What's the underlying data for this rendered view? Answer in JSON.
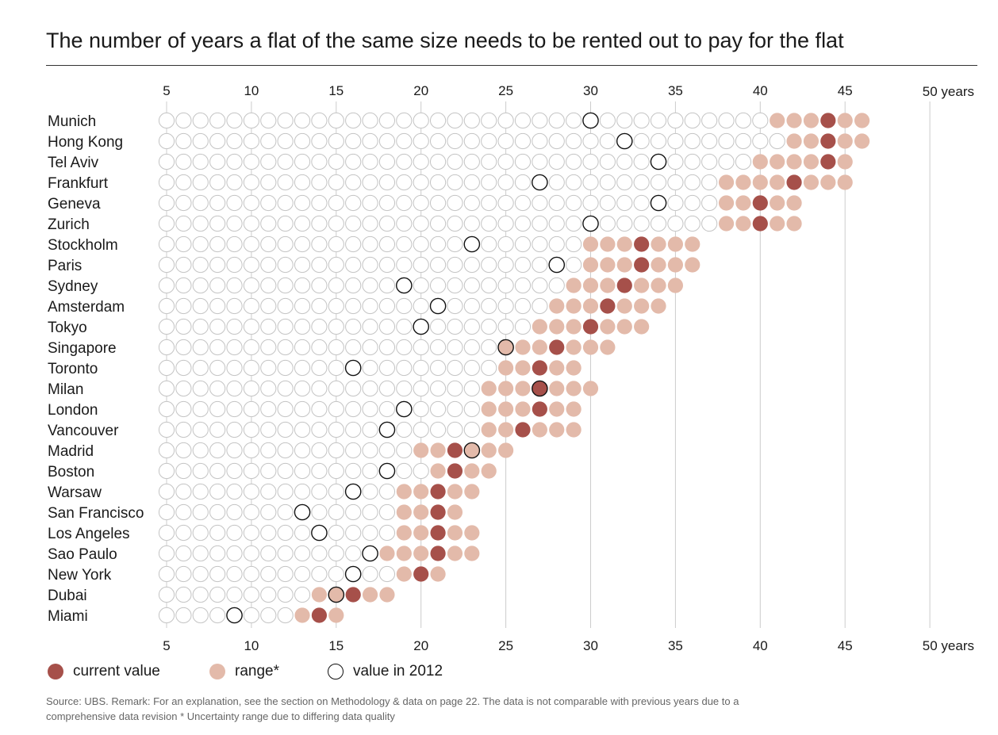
{
  "chart_data": {
    "type": "scatter",
    "title": "The number of years a flat of the same size needs to be rented out to pay for the flat",
    "x_ticks": [
      5,
      10,
      15,
      20,
      25,
      30,
      35,
      40,
      45
    ],
    "x_end_label": "50 years",
    "xlim": [
      5,
      50
    ],
    "grid": true,
    "colors": {
      "current": "#A6504A",
      "range": "#E3BAAA",
      "outline": "#c4c4c4",
      "marker_2012": "#111111",
      "gridline": "#cccccc"
    },
    "cities": [
      {
        "name": "Munich",
        "range": [
          41,
          46
        ],
        "current": 44,
        "value_2012": 30
      },
      {
        "name": "Hong Kong",
        "range": [
          42,
          46
        ],
        "current": 44,
        "value_2012": 32
      },
      {
        "name": "Tel Aviv",
        "range": [
          40,
          45
        ],
        "current": 44,
        "value_2012": 34
      },
      {
        "name": "Frankfurt",
        "range": [
          38,
          45
        ],
        "current": 42,
        "value_2012": 27
      },
      {
        "name": "Geneva",
        "range": [
          38,
          42
        ],
        "current": 40,
        "value_2012": 34
      },
      {
        "name": "Zurich",
        "range": [
          38,
          42
        ],
        "current": 40,
        "value_2012": 30
      },
      {
        "name": "Stockholm",
        "range": [
          30,
          36
        ],
        "current": 33,
        "value_2012": 23
      },
      {
        "name": "Paris",
        "range": [
          30,
          36
        ],
        "current": 33,
        "value_2012": 28
      },
      {
        "name": "Sydney",
        "range": [
          29,
          35
        ],
        "current": 32,
        "value_2012": 19
      },
      {
        "name": "Amsterdam",
        "range": [
          28,
          34
        ],
        "current": 31,
        "value_2012": 21
      },
      {
        "name": "Tokyo",
        "range": [
          27,
          33
        ],
        "current": 30,
        "value_2012": 20
      },
      {
        "name": "Singapore",
        "range": [
          25,
          31
        ],
        "current": 28,
        "value_2012": 25
      },
      {
        "name": "Toronto",
        "range": [
          25,
          29
        ],
        "current": 27,
        "value_2012": 16
      },
      {
        "name": "Milan",
        "range": [
          24,
          30
        ],
        "current": 27,
        "value_2012": 27
      },
      {
        "name": "London",
        "range": [
          24,
          29
        ],
        "current": 27,
        "value_2012": 19
      },
      {
        "name": "Vancouver",
        "range": [
          24,
          29
        ],
        "current": 26,
        "value_2012": 18
      },
      {
        "name": "Madrid",
        "range": [
          20,
          25
        ],
        "current": 22,
        "value_2012": 23
      },
      {
        "name": "Boston",
        "range": [
          21,
          24
        ],
        "current": 22,
        "value_2012": 18
      },
      {
        "name": "Warsaw",
        "range": [
          19,
          23
        ],
        "current": 21,
        "value_2012": 16
      },
      {
        "name": "San Francisco",
        "range": [
          19,
          22
        ],
        "current": 21,
        "value_2012": 13
      },
      {
        "name": "Los Angeles",
        "range": [
          19,
          23
        ],
        "current": 21,
        "value_2012": 14
      },
      {
        "name": "Sao Paulo",
        "range": [
          18,
          23
        ],
        "current": 21,
        "value_2012": 17
      },
      {
        "name": "New York",
        "range": [
          19,
          21
        ],
        "current": 20,
        "value_2012": 16
      },
      {
        "name": "Dubai",
        "range": [
          14,
          18
        ],
        "current": 16,
        "value_2012": 15
      },
      {
        "name": "Miami",
        "range": [
          13,
          15
        ],
        "current": 14,
        "value_2012": 9
      }
    ]
  },
  "legend": {
    "current": "current value",
    "range": "range*",
    "value_2012": "value in 2012"
  },
  "source_note": "Source: UBS. Remark: For an explanation, see the section on Methodology & data on page 22. The data is not comparable with previous years due to a comprehensive data revision   * Uncertainty range due to differing data quality"
}
